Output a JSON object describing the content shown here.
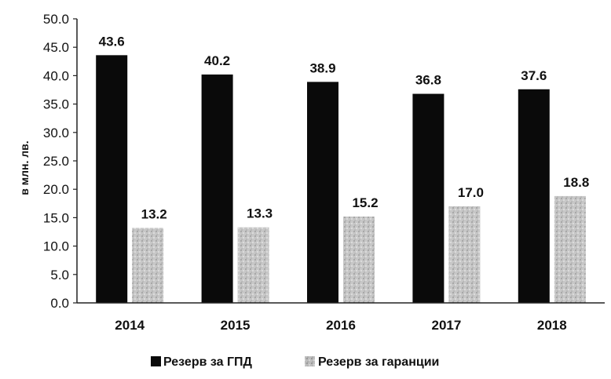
{
  "chart_data": {
    "type": "bar",
    "title": "",
    "xlabel": "",
    "ylabel": "в млн. лв.",
    "ylim": [
      0,
      50
    ],
    "yticks": [
      "0.0",
      "5.0",
      "10.0",
      "15.0",
      "20.0",
      "25.0",
      "30.0",
      "35.0",
      "40.0",
      "45.0",
      "50.0"
    ],
    "categories": [
      "2014",
      "2015",
      "2016",
      "2017",
      "2018"
    ],
    "series": [
      {
        "name": "Резерв за ГПД",
        "values": [
          43.6,
          40.2,
          38.9,
          36.8,
          37.6
        ],
        "labels": [
          "43.6",
          "40.2",
          "38.9",
          "36.8",
          "37.6"
        ],
        "color": "#0a0a0a"
      },
      {
        "name": "Резерв за гаранции",
        "values": [
          13.2,
          13.3,
          15.2,
          17.0,
          18.8
        ],
        "labels": [
          "13.2",
          "13.3",
          "15.2",
          "17.0",
          "18.8"
        ],
        "color": "#b8b8b8"
      }
    ],
    "grid": false,
    "legend": "bottom"
  },
  "legend": {
    "items": [
      {
        "label": "Резерв за ГПД"
      },
      {
        "label": "Резерв за гаранции"
      }
    ]
  }
}
